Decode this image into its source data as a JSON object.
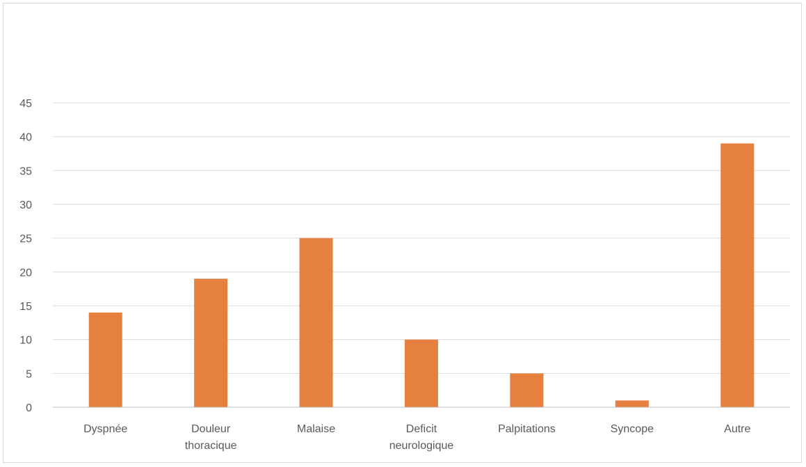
{
  "chart_data": {
    "type": "bar",
    "categories": [
      [
        "Dyspnée"
      ],
      [
        "Douleur",
        "thoracique"
      ],
      [
        "Malaise"
      ],
      [
        "Deficit",
        "neurologique"
      ],
      [
        "Palpitations"
      ],
      [
        "Syncope"
      ],
      [
        "Autre"
      ]
    ],
    "values": [
      14,
      19,
      25,
      10,
      5,
      1,
      39
    ],
    "title": "",
    "xlabel": "",
    "ylabel": "",
    "ylim": [
      0,
      45
    ],
    "yticks": [
      0,
      5,
      10,
      15,
      20,
      25,
      30,
      35,
      40,
      45
    ],
    "grid": true,
    "legend": "none",
    "colors": {
      "bar": "#E5803F",
      "grid": "#d9d9d9",
      "axis": "#bfbfbf",
      "text": "#595959"
    }
  }
}
